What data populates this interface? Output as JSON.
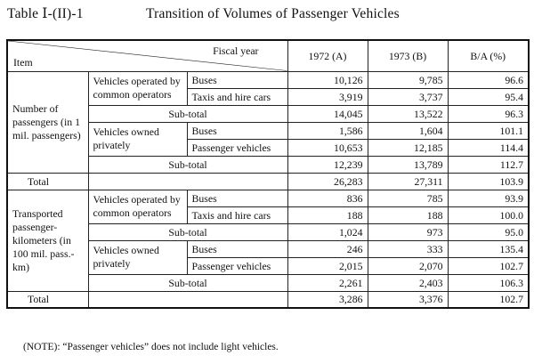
{
  "title": {
    "number": "Table Ⅰ-(II)-1",
    "text": "Transition of Volumes of Passenger Vehicles"
  },
  "header": {
    "fiscal_year": "Fiscal year",
    "item": "Item",
    "columns": [
      "1972 (A)",
      "1973 (B)",
      "B/A (%)"
    ]
  },
  "sections": [
    {
      "label": "Number of passengers (in 1 mil. passengers)",
      "groups": [
        {
          "label": "Vehicles operated by common operators",
          "rows": [
            {
              "label": "Buses",
              "v1972": "10,126",
              "v1973": "9,785",
              "ratio": "96.6"
            },
            {
              "label": "Taxis and hire cars",
              "v1972": "3,919",
              "v1973": "3,737",
              "ratio": "95.4"
            },
            {
              "label": "Sub-total",
              "v1972": "14,045",
              "v1973": "13,522",
              "ratio": "96.3"
            }
          ]
        },
        {
          "label": "Vehicles owned privately",
          "rows": [
            {
              "label": "Buses",
              "v1972": "1,586",
              "v1973": "1,604",
              "ratio": "101.1"
            },
            {
              "label": "Passenger vehicles",
              "v1972": "10,653",
              "v1973": "12,185",
              "ratio": "114.4"
            },
            {
              "label": "Sub-total",
              "v1972": "12,239",
              "v1973": "13,789",
              "ratio": "112.7"
            }
          ]
        }
      ],
      "total": {
        "label": "Total",
        "v1972": "26,283",
        "v1973": "27,311",
        "ratio": "103.9"
      }
    },
    {
      "label": "Transported passenger-kilometers (in 100 mil. pass.-km)",
      "groups": [
        {
          "label": "Vehicles operated by common operators",
          "rows": [
            {
              "label": "Buses",
              "v1972": "836",
              "v1973": "785",
              "ratio": "93.9"
            },
            {
              "label": "Taxis and hire cars",
              "v1972": "188",
              "v1973": "188",
              "ratio": "100.0"
            },
            {
              "label": "Sub-total",
              "v1972": "1,024",
              "v1973": "973",
              "ratio": "95.0"
            }
          ]
        },
        {
          "label": "Vehicles owned privately",
          "rows": [
            {
              "label": "Buses",
              "v1972": "246",
              "v1973": "333",
              "ratio": "135.4"
            },
            {
              "label": "Passenger vehicles",
              "v1972": "2,015",
              "v1973": "2,070",
              "ratio": "102.7"
            },
            {
              "label": "Sub-total",
              "v1972": "2,261",
              "v1973": "2,403",
              "ratio": "106.3"
            }
          ]
        }
      ],
      "total": {
        "label": "Total",
        "v1972": "3,286",
        "v1973": "3,376",
        "ratio": "102.7"
      }
    }
  ],
  "note": "(NOTE): “Passenger vehicles” does not include light vehicles."
}
